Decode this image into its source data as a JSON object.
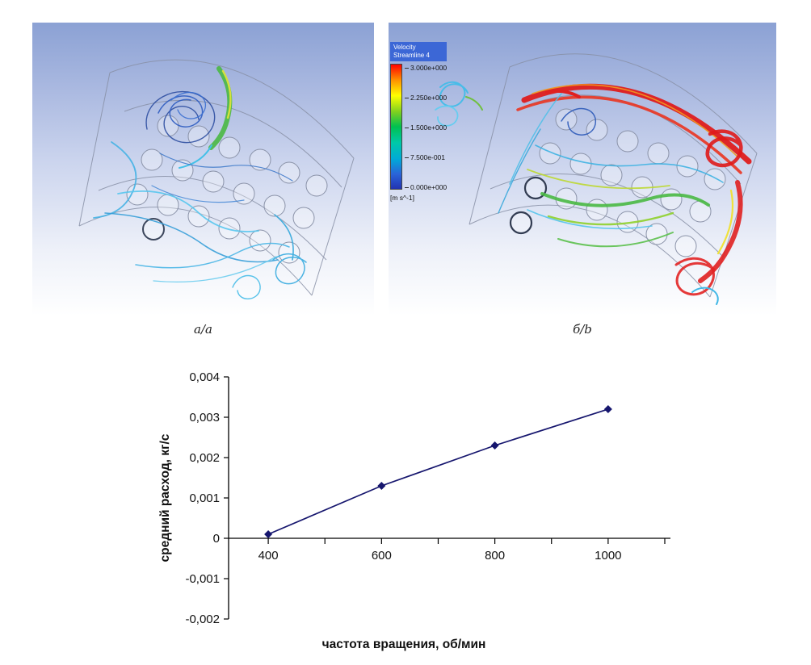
{
  "figure": {
    "panel_a": {
      "caption": "а/а"
    },
    "panel_b": {
      "caption": "б/b"
    },
    "legend": {
      "title_line1": "Velocity",
      "title_line2": "Streamline 4",
      "ticks": [
        "3.000e+000",
        "2.250e+000",
        "1.500e+000",
        "7.500e-001",
        "0.000e+000"
      ],
      "units": "[m s^-1]"
    }
  },
  "chart_data": {
    "type": "line",
    "title": "",
    "xlabel": "частота вращения, об/мин",
    "ylabel": "средний расход, кг/с",
    "x": [
      400,
      600,
      800,
      1000
    ],
    "values": [
      0.0001,
      0.0013,
      0.0023,
      0.0032
    ],
    "xlim": [
      330,
      1110
    ],
    "ylim": [
      -0.002,
      0.004
    ],
    "x_tick_values": [
      400,
      600,
      800,
      1000
    ],
    "x_tick_labels": [
      "400",
      "600",
      "800",
      "1000"
    ],
    "x_minor_ticks": [
      400,
      500,
      600,
      700,
      800,
      900,
      1000,
      1100
    ],
    "y_tick_values": [
      0.004,
      0.003,
      0.002,
      0.001,
      0,
      -0.001,
      -0.002
    ],
    "y_ticks": [
      "0,004",
      "0,003",
      "0,002",
      "0,001",
      "0",
      "-0,001",
      "-0,002"
    ],
    "marker": "diamond",
    "line_color": "#16166e",
    "grid": false,
    "legend_position": "none"
  }
}
